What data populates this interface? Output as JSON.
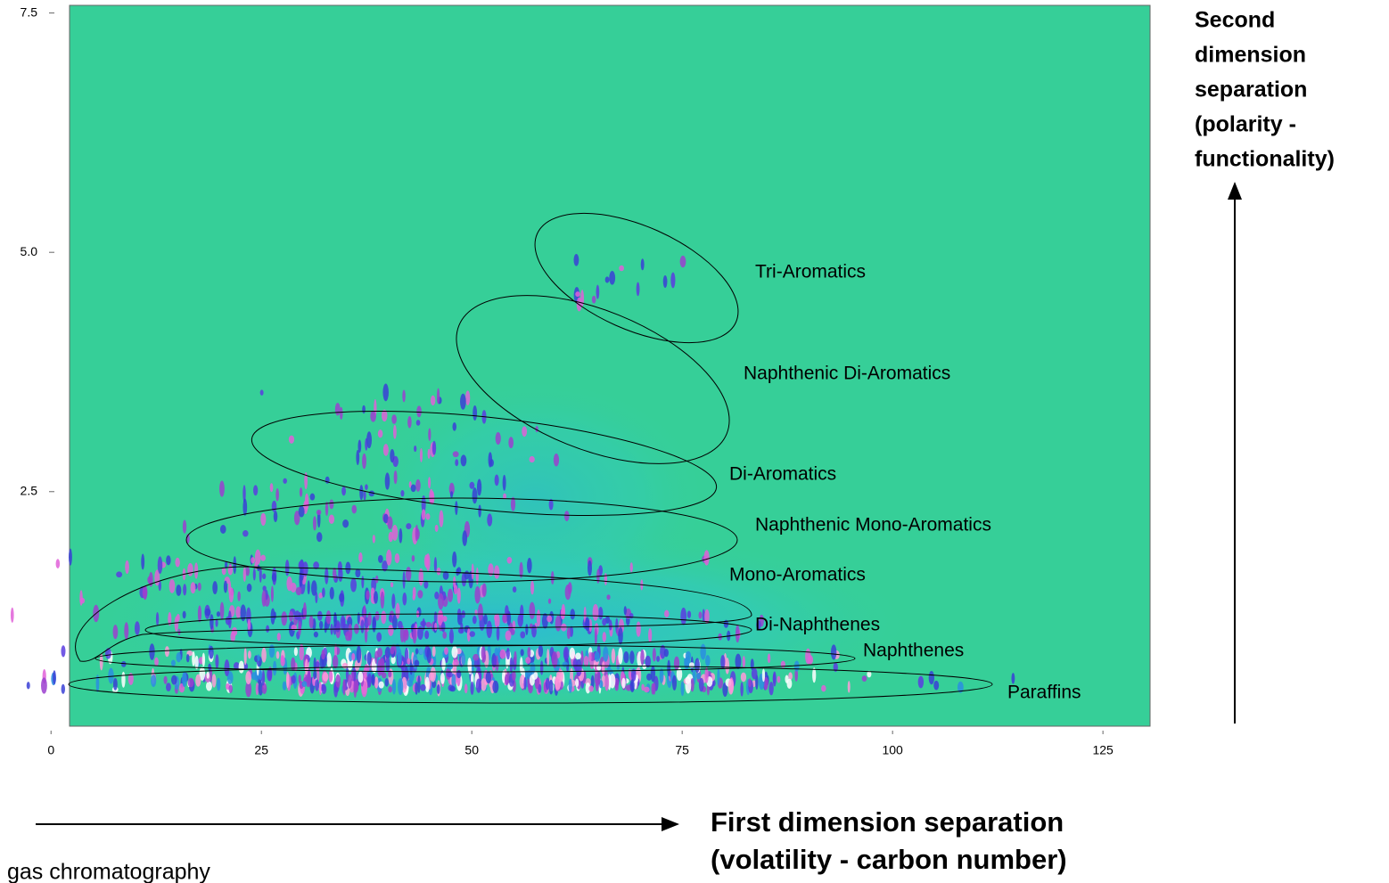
{
  "chart_data": {
    "type": "contour",
    "xlim": [
      2.2,
      130.6
    ],
    "ylim": [
      0.05,
      7.58
    ],
    "xticks": [
      0,
      25,
      50,
      75,
      100,
      125
    ],
    "yticks": [
      {
        "value": 2.5,
        "label": "2.5"
      },
      {
        "value": 5,
        "label": "5.0"
      },
      7.5
    ],
    "background_color": "#36cf98",
    "annotations": [
      "Tri-Aromatics",
      "Naphthenic Di-Aromatics",
      "Di-Aromatics",
      "Naphthenic Mono-Aromatics",
      "Mono-Aromatics",
      "Di-Naphthenes",
      "Naphthenes",
      "Paraffins"
    ],
    "xlabel": [
      "First dimension separation",
      "(volatility - carbon number)"
    ],
    "ylabel": [
      "Second",
      "dimension",
      "separation",
      "(polarity -",
      "functionality)"
    ],
    "caption": "gas chromatography"
  }
}
